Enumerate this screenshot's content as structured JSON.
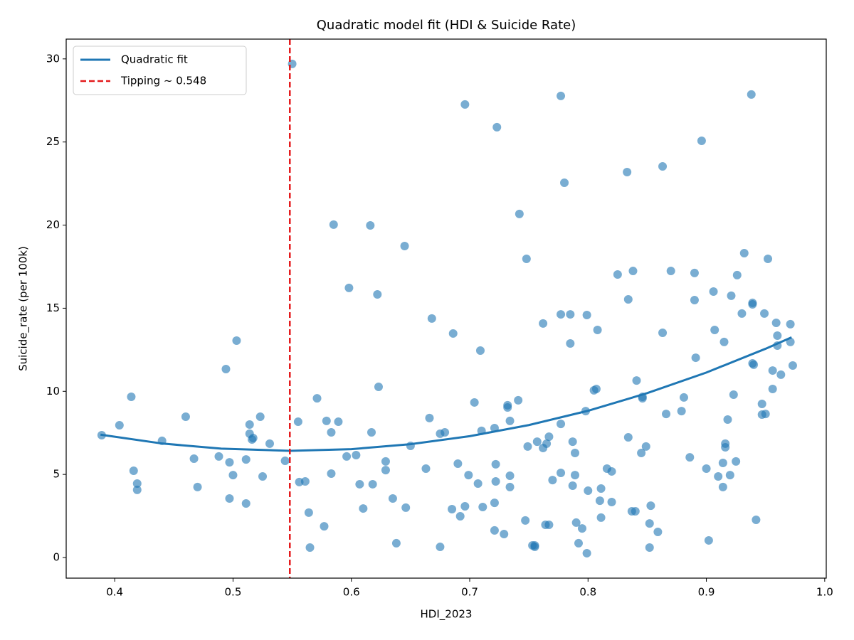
{
  "chart_data": {
    "type": "scatter",
    "title": "Quadratic model fit (HDI & Suicide Rate)",
    "xlabel": "HDI_2023",
    "ylabel": "Suicide_rate (per 100k)",
    "color": "#1f77b4",
    "alpha": 0.6,
    "x": [
      0.389,
      0.404,
      0.414,
      0.416,
      0.419,
      0.419,
      0.44,
      0.46,
      0.467,
      0.47,
      0.488,
      0.494,
      0.497,
      0.497,
      0.5,
      0.503,
      0.511,
      0.511,
      0.514,
      0.514,
      0.516,
      0.517,
      0.523,
      0.525,
      0.531,
      0.544,
      0.55,
      0.555,
      0.556,
      0.561,
      0.564,
      0.565,
      0.571,
      0.577,
      0.579,
      0.583,
      0.583,
      0.585,
      0.589,
      0.596,
      0.598,
      0.604,
      0.607,
      0.61,
      0.616,
      0.617,
      0.618,
      0.622,
      0.623,
      0.629,
      0.629,
      0.635,
      0.638,
      0.645,
      0.646,
      0.65,
      0.663,
      0.666,
      0.668,
      0.675,
      0.675,
      0.679,
      0.685,
      0.686,
      0.69,
      0.692,
      0.696,
      0.696,
      0.699,
      0.704,
      0.707,
      0.709,
      0.71,
      0.711,
      0.721,
      0.722,
      0.722,
      0.721,
      0.721,
      0.723,
      0.729,
      0.732,
      0.732,
      0.734,
      0.734,
      0.734,
      0.741,
      0.742,
      0.747,
      0.748,
      0.749,
      0.753,
      0.755,
      0.755,
      0.757,
      0.762,
      0.762,
      0.765,
      0.764,
      0.767,
      0.767,
      0.77,
      0.777,
      0.777,
      0.777,
      0.777,
      0.78,
      0.785,
      0.785,
      0.787,
      0.787,
      0.789,
      0.789,
      0.79,
      0.792,
      0.795,
      0.798,
      0.799,
      0.799,
      0.8,
      0.805,
      0.807,
      0.808,
      0.81,
      0.811,
      0.811,
      0.816,
      0.82,
      0.82,
      0.825,
      0.833,
      0.834,
      0.834,
      0.837,
      0.838,
      0.84,
      0.841,
      0.845,
      0.846,
      0.846,
      0.849,
      0.852,
      0.852,
      0.853,
      0.859,
      0.863,
      0.863,
      0.866,
      0.87,
      0.879,
      0.881,
      0.886,
      0.89,
      0.89,
      0.891,
      0.896,
      0.9,
      0.902,
      0.906,
      0.907,
      0.91,
      0.914,
      0.914,
      0.915,
      0.916,
      0.916,
      0.918,
      0.92,
      0.921,
      0.923,
      0.925,
      0.926,
      0.93,
      0.932,
      0.938,
      0.939,
      0.939,
      0.939,
      0.94,
      0.942,
      0.947,
      0.947,
      0.949,
      0.95,
      0.952,
      0.956,
      0.956,
      0.959,
      0.96,
      0.96,
      0.963,
      0.971,
      0.971,
      0.973
    ],
    "values": [
      7.36,
      7.96,
      9.67,
      5.22,
      4.45,
      4.07,
      7.02,
      8.47,
      5.95,
      4.24,
      6.08,
      11.34,
      5.73,
      3.55,
      4.96,
      13.05,
      5.9,
      3.25,
      8.0,
      7.45,
      7.1,
      7.19,
      8.47,
      4.88,
      6.85,
      5.82,
      29.7,
      8.17,
      4.54,
      4.58,
      2.7,
      0.6,
      9.58,
      1.88,
      8.22,
      7.53,
      5.05,
      20.03,
      8.17,
      6.08,
      16.22,
      6.16,
      4.41,
      2.95,
      19.98,
      7.53,
      4.41,
      15.83,
      10.27,
      5.78,
      5.26,
      3.55,
      0.86,
      18.74,
      3.0,
      6.72,
      5.35,
      8.39,
      14.38,
      7.45,
      0.64,
      7.53,
      2.91,
      13.48,
      5.65,
      2.48,
      27.26,
      3.08,
      4.96,
      9.33,
      4.45,
      12.45,
      7.62,
      3.04,
      7.79,
      5.61,
      4.58,
      3.29,
      1.63,
      25.89,
      1.41,
      9.16,
      9.03,
      8.22,
      4.92,
      4.24,
      9.46,
      20.67,
      2.23,
      17.97,
      6.68,
      0.73,
      0.73,
      0.64,
      6.97,
      14.08,
      6.59,
      6.85,
      1.97,
      1.97,
      7.27,
      4.66,
      27.77,
      14.63,
      8.04,
      5.09,
      22.55,
      14.63,
      12.88,
      6.97,
      4.32,
      6.29,
      4.96,
      2.1,
      0.86,
      1.75,
      8.81,
      14.59,
      0.26,
      4.02,
      10.06,
      10.14,
      13.69,
      3.42,
      4.15,
      2.4,
      5.35,
      5.18,
      3.34,
      17.03,
      23.19,
      15.53,
      7.23,
      2.78,
      17.24,
      2.78,
      10.65,
      6.29,
      9.67,
      9.58,
      6.68,
      0.6,
      2.05,
      3.12,
      1.54,
      23.53,
      13.52,
      8.64,
      17.24,
      8.81,
      9.63,
      6.03,
      17.12,
      15.49,
      12.02,
      25.07,
      5.35,
      1.03,
      16.0,
      13.69,
      4.88,
      5.69,
      4.24,
      12.97,
      6.85,
      6.63,
      8.3,
      4.96,
      15.75,
      9.8,
      5.78,
      16.99,
      14.68,
      18.31,
      27.86,
      15.32,
      15.23,
      11.68,
      11.6,
      2.27,
      9.24,
      8.6,
      14.68,
      8.64,
      17.97,
      11.25,
      10.14,
      14.12,
      13.35,
      12.75,
      11.0,
      14.04,
      12.97,
      11.55
    ],
    "fit": {
      "name": "Quadratic fit",
      "color": "#1f77b4",
      "x": [
        0.388,
        0.44,
        0.49,
        0.548,
        0.6,
        0.65,
        0.7,
        0.75,
        0.8,
        0.85,
        0.9,
        0.95,
        0.972
      ],
      "values": [
        7.39,
        6.86,
        6.55,
        6.42,
        6.52,
        6.82,
        7.3,
        7.97,
        8.83,
        9.89,
        11.13,
        12.56,
        13.25
      ]
    },
    "vline": {
      "name": "Tipping ~ 0.548",
      "x": 0.548,
      "color": "#e41a1c"
    },
    "legend": "upper left",
    "xlim": [
      0.359,
      1.0013
    ],
    "ylim": [
      -1.24,
      31.19
    ],
    "xticks": [
      0.4,
      0.5,
      0.6,
      0.7,
      0.8,
      0.9,
      {
        "value": 1,
        "label": "1.0"
      }
    ],
    "yticks": [
      0,
      5,
      10,
      15,
      20,
      25,
      30
    ]
  }
}
